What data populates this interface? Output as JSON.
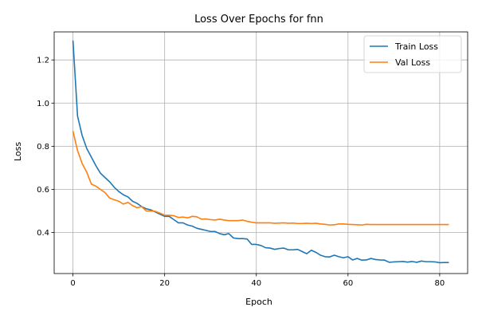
{
  "chart_data": {
    "type": "line",
    "title": "Loss Over Epochs for fnn",
    "xlabel": "Epoch",
    "ylabel": "Loss",
    "xlim": [
      -4.1,
      86.1
    ],
    "ylim": [
      0.21,
      1.33
    ],
    "xticks": [
      0,
      20,
      40,
      60,
      80
    ],
    "yticks": [
      0.4,
      0.6,
      0.8,
      1.0,
      1.2
    ],
    "ytick_labels": [
      "0.4",
      "0.6",
      "0.8",
      "1.0",
      "1.2"
    ],
    "grid": true,
    "legend_position": "top-right",
    "series": [
      {
        "name": "Train Loss",
        "color": "#1f77b4",
        "x": [
          0,
          1,
          2,
          3,
          4,
          5,
          6,
          7,
          8,
          9,
          10,
          11,
          12,
          13,
          14,
          15,
          16,
          17,
          18,
          19,
          20,
          21,
          22,
          23,
          24,
          25,
          26,
          27,
          28,
          29,
          30,
          31,
          32,
          33,
          34,
          35,
          36,
          37,
          38,
          39,
          40,
          41,
          42,
          43,
          44,
          45,
          46,
          47,
          48,
          49,
          50,
          51,
          52,
          53,
          54,
          55,
          56,
          57,
          58,
          59,
          60,
          61,
          62,
          63,
          64,
          65,
          66,
          67,
          68,
          69,
          70,
          71,
          72,
          73,
          74,
          75,
          76,
          77,
          78,
          79,
          80,
          81,
          82
        ],
        "values": [
          1.29,
          0.94,
          0.85,
          0.79,
          0.75,
          0.71,
          0.675,
          0.655,
          0.635,
          0.61,
          0.59,
          0.575,
          0.565,
          0.545,
          0.535,
          0.52,
          0.51,
          0.505,
          0.495,
          0.485,
          0.475,
          0.475,
          0.46,
          0.445,
          0.445,
          0.435,
          0.43,
          0.42,
          0.415,
          0.41,
          0.405,
          0.405,
          0.395,
          0.39,
          0.395,
          0.375,
          0.372,
          0.372,
          0.37,
          0.345,
          0.345,
          0.34,
          0.33,
          0.328,
          0.322,
          0.326,
          0.328,
          0.32,
          0.32,
          0.322,
          0.312,
          0.302,
          0.318,
          0.308,
          0.295,
          0.288,
          0.287,
          0.295,
          0.288,
          0.283,
          0.288,
          0.273,
          0.28,
          0.272,
          0.273,
          0.28,
          0.275,
          0.273,
          0.272,
          0.262,
          0.264,
          0.265,
          0.266,
          0.263,
          0.266,
          0.262,
          0.268,
          0.265,
          0.265,
          0.264,
          0.26,
          0.261,
          0.261
        ]
      },
      {
        "name": "Val Loss",
        "color": "#ff7f0e",
        "x": [
          0,
          1,
          2,
          3,
          4,
          5,
          6,
          7,
          8,
          9,
          10,
          11,
          12,
          13,
          14,
          15,
          16,
          17,
          18,
          19,
          20,
          21,
          22,
          23,
          24,
          25,
          26,
          27,
          28,
          29,
          30,
          31,
          32,
          33,
          34,
          35,
          36,
          37,
          38,
          39,
          40,
          41,
          42,
          43,
          44,
          45,
          46,
          47,
          48,
          49,
          50,
          51,
          52,
          53,
          54,
          55,
          56,
          57,
          58,
          59,
          60,
          61,
          62,
          63,
          64,
          65,
          66,
          67,
          68,
          69,
          70,
          71,
          72,
          73,
          74,
          75,
          76,
          77,
          78,
          79,
          80,
          81,
          82
        ],
        "values": [
          0.87,
          0.78,
          0.72,
          0.68,
          0.625,
          0.615,
          0.6,
          0.585,
          0.56,
          0.552,
          0.545,
          0.532,
          0.54,
          0.525,
          0.515,
          0.52,
          0.5,
          0.5,
          0.498,
          0.49,
          0.48,
          0.48,
          0.478,
          0.47,
          0.472,
          0.468,
          0.475,
          0.473,
          0.462,
          0.463,
          0.46,
          0.458,
          0.462,
          0.458,
          0.455,
          0.455,
          0.455,
          0.458,
          0.452,
          0.448,
          0.445,
          0.445,
          0.445,
          0.445,
          0.443,
          0.444,
          0.445,
          0.443,
          0.444,
          0.442,
          0.442,
          0.443,
          0.442,
          0.443,
          0.44,
          0.438,
          0.435,
          0.436,
          0.44,
          0.44,
          0.438,
          0.437,
          0.436,
          0.435,
          0.438,
          0.437,
          0.437,
          0.437,
          0.437,
          0.437,
          0.437,
          0.437,
          0.437,
          0.437,
          0.437,
          0.437,
          0.437,
          0.437,
          0.437,
          0.437,
          0.437,
          0.437,
          0.437
        ]
      }
    ]
  }
}
